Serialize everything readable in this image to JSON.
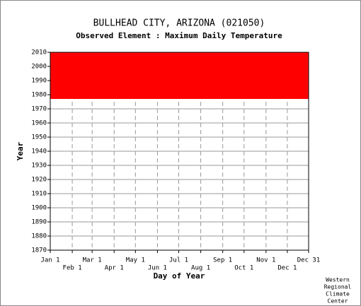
{
  "chart_data": {
    "type": "coverage",
    "title": "BULLHEAD CITY, ARIZONA   (021050)",
    "subtitle": "Observed Element : Maximum Daily Temperature",
    "xlabel": "Day of Year",
    "ylabel": "Year",
    "xlim": [
      1,
      365
    ],
    "xticks": [
      {
        "value": 1,
        "label": "Jan 1"
      },
      {
        "value": 32,
        "label": "Feb 1"
      },
      {
        "value": 60,
        "label": "Mar 1"
      },
      {
        "value": 91,
        "label": "Apr 1"
      },
      {
        "value": 121,
        "label": "May 1"
      },
      {
        "value": 152,
        "label": "Jun 1"
      },
      {
        "value": 182,
        "label": "Jul 1"
      },
      {
        "value": 213,
        "label": "Aug 1"
      },
      {
        "value": 244,
        "label": "Sep 1"
      },
      {
        "value": 274,
        "label": "Oct 1"
      },
      {
        "value": 305,
        "label": "Nov 1"
      },
      {
        "value": 335,
        "label": "Dec 1"
      },
      {
        "value": 365,
        "label": "Dec 31"
      }
    ],
    "ylim": [
      1870,
      2010
    ],
    "yticks": [
      1870,
      1880,
      1890,
      1900,
      1910,
      1920,
      1930,
      1940,
      1950,
      1960,
      1970,
      1980,
      1990,
      2000,
      2010
    ],
    "grid": true,
    "coverage": {
      "days": [
        1,
        365
      ],
      "years": [
        1977,
        2010
      ],
      "color": "#ff0000"
    },
    "credit": [
      "Western",
      "Regional",
      "Climate",
      "Center"
    ]
  }
}
